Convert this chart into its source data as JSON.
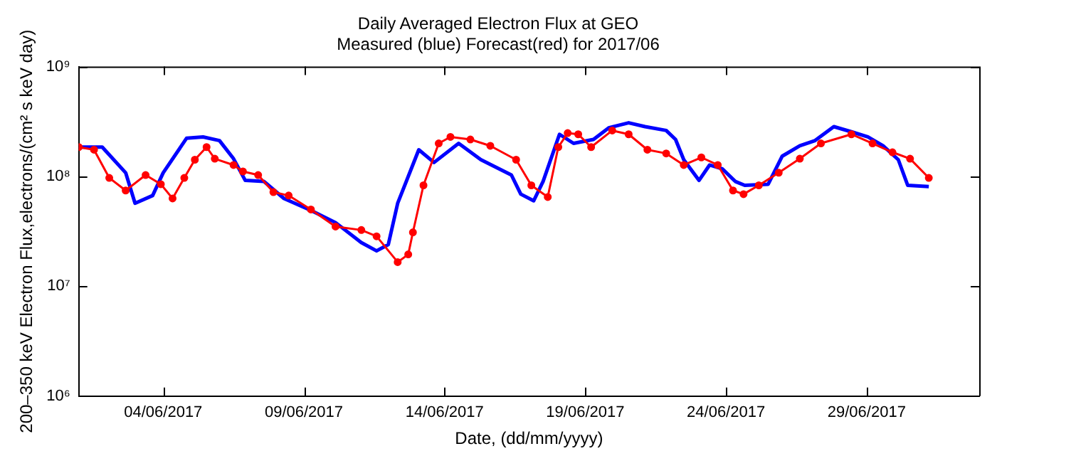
{
  "chart_data": {
    "type": "line",
    "title": "Daily Averaged Electron Flux at GEO",
    "subtitle": "Measured (blue) Forecast(red) for 2017/06",
    "xlabel": "Date, (dd/mm/yyyy)",
    "ylabel": "200–350 keV Electron Flux,electrons/(cm² s keV day)",
    "log": "y",
    "grid": false,
    "legend": false,
    "marker": "none",
    "line_style": "solid",
    "xlim": [
      "2017-06-01",
      "2017-07-03"
    ],
    "xticks": [
      {
        "value": "2017-06-04",
        "label": "04/06/2017"
      },
      {
        "value": "2017-06-09",
        "label": "09/06/2017"
      },
      {
        "value": "2017-06-14",
        "label": "14/06/2017"
      },
      {
        "value": "2017-06-19",
        "label": "19/06/2017"
      },
      {
        "value": "2017-06-24",
        "label": "24/06/2017"
      },
      {
        "value": "2017-06-29",
        "label": "29/06/2017"
      }
    ],
    "ylim": [
      1000000,
      1000000000
    ],
    "yticks": [
      {
        "value": 1000000,
        "label": "10⁶"
      },
      {
        "value": 10000000,
        "label": "10⁷"
      },
      {
        "value": 100000000,
        "label": "10⁸"
      },
      {
        "value": 1000000000,
        "label": "10⁹"
      }
    ],
    "series": [
      {
        "color": "#0000ff",
        "x": [
          "2017-06-01T00:00",
          "2017-06-01T20:00",
          "2017-06-02T16:00",
          "2017-06-03T00:00",
          "2017-06-03T15:00",
          "2017-06-04T00:00",
          "2017-06-04T20:00",
          "2017-06-05T10:00",
          "2017-06-06T00:00",
          "2017-06-06T12:00",
          "2017-06-06T22:00",
          "2017-06-07T14:00",
          "2017-06-08T07:00",
          "2017-06-09T06:00",
          "2017-06-10T03:00",
          "2017-06-11T01:00",
          "2017-06-11T14:00",
          "2017-06-12T00:00",
          "2017-06-12T08:00",
          "2017-06-13T02:00",
          "2017-06-13T15:00",
          "2017-06-14T12:00",
          "2017-06-15T07:00",
          "2017-06-16T09:00",
          "2017-06-16T17:00",
          "2017-06-17T04:00",
          "2017-06-17T12:00",
          "2017-06-18T02:00",
          "2017-06-18T14:00",
          "2017-06-19T07:00",
          "2017-06-19T20:00",
          "2017-06-20T13:00",
          "2017-06-21T03:00",
          "2017-06-21T21:00",
          "2017-06-22T05:00",
          "2017-06-22T12:00",
          "2017-06-23T01:00",
          "2017-06-23T10:00",
          "2017-06-23T21:00",
          "2017-06-24T08:00",
          "2017-06-24T16:00",
          "2017-06-25T12:00",
          "2017-06-26T00:00",
          "2017-06-26T15:00",
          "2017-06-27T04:00",
          "2017-06-27T20:00",
          "2017-06-28T11:00",
          "2017-06-29T01:00",
          "2017-06-29T14:00",
          "2017-06-30T03:00",
          "2017-06-30T11:00",
          "2017-07-01T05:00"
        ],
        "values": [
          185000000,
          185000000,
          108000000,
          57000000,
          67000000,
          108000000,
          223000000,
          229000000,
          212000000,
          145000000,
          92000000,
          90000000,
          63000000,
          49000000,
          38000000,
          25000000,
          21000000,
          24000000,
          57000000,
          175000000,
          134000000,
          200000000,
          142000000,
          103000000,
          69000000,
          60000000,
          90000000,
          242000000,
          200000000,
          217000000,
          277000000,
          308000000,
          284000000,
          262000000,
          217000000,
          142000000,
          92000000,
          127000000,
          117000000,
          90000000,
          83000000,
          85000000,
          153000000,
          190000000,
          212000000,
          284000000,
          255000000,
          229000000,
          190000000,
          142000000,
          83000000,
          81000000
        ]
      },
      {
        "color": "#ff0000",
        "marker": "circle",
        "x": [
          "2017-06-01T00:00",
          "2017-06-01T13:00",
          "2017-06-02T02:00",
          "2017-06-02T16:00",
          "2017-06-03T09:00",
          "2017-06-03T22:00",
          "2017-06-04T08:00",
          "2017-06-04T18:00",
          "2017-06-05T03:00",
          "2017-06-05T13:00",
          "2017-06-05T20:00",
          "2017-06-06T12:00",
          "2017-06-06T20:00",
          "2017-06-07T09:00",
          "2017-06-07T22:00",
          "2017-06-08T11:00",
          "2017-06-09T06:00",
          "2017-06-10T03:00",
          "2017-06-11T01:00",
          "2017-06-11T14:00",
          "2017-06-12T08:00",
          "2017-06-12T17:00",
          "2017-06-12T21:00",
          "2017-06-13T06:00",
          "2017-06-13T19:00",
          "2017-06-14T05:00",
          "2017-06-14T22:00",
          "2017-06-15T15:00",
          "2017-06-16T13:00",
          "2017-06-17T02:00",
          "2017-06-17T16:00",
          "2017-06-18T01:00",
          "2017-06-18T09:00",
          "2017-06-18T18:00",
          "2017-06-19T05:00",
          "2017-06-19T23:00",
          "2017-06-20T13:00",
          "2017-06-21T05:00",
          "2017-06-21T21:00",
          "2017-06-22T12:00",
          "2017-06-23T03:00",
          "2017-06-23T17:00",
          "2017-06-24T06:00",
          "2017-06-24T15:00",
          "2017-06-25T04:00",
          "2017-06-25T21:00",
          "2017-06-26T15:00",
          "2017-06-27T09:00",
          "2017-06-28T11:00",
          "2017-06-29T05:00",
          "2017-06-29T22:00",
          "2017-06-30T13:00",
          "2017-07-01T05:00"
        ],
        "values": [
          185000000,
          175000000,
          97000000,
          74500000,
          103000000,
          85000000,
          63000000,
          97000000,
          142000000,
          185000000,
          145000000,
          127000000,
          111000000,
          103000000,
          72000000,
          67000000,
          50000000,
          35000000,
          32500000,
          28500000,
          16600000,
          19500000,
          31000000,
          83000000,
          200000000,
          229000000,
          217000000,
          190000000,
          142000000,
          83000000,
          65000000,
          185000000,
          248000000,
          242000000,
          185000000,
          262000000,
          242000000,
          175000000,
          162000000,
          127000000,
          149000000,
          127000000,
          74500000,
          69000000,
          83000000,
          108000000,
          145000000,
          200000000,
          242000000,
          200000000,
          166000000,
          145000000,
          97000000
        ]
      }
    ]
  }
}
